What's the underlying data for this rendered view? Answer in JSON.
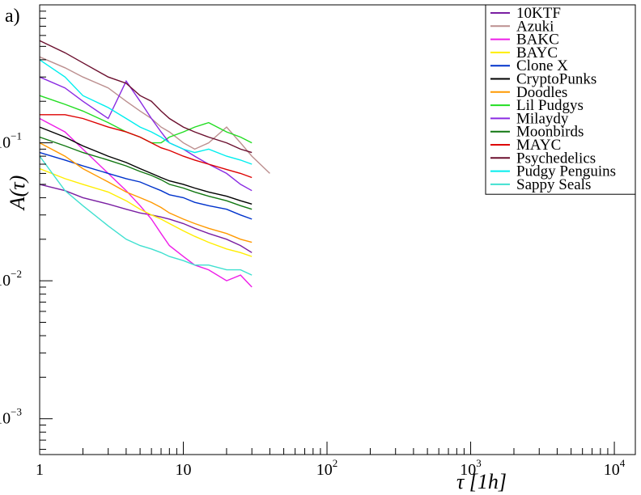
{
  "panel_label": "a)",
  "chart_data": {
    "type": "line",
    "xlabel": "τ [1h]",
    "ylabel": "A(τ)",
    "xscale": "log",
    "yscale": "log",
    "xlim": [
      1,
      14000
    ],
    "ylim": [
      0.00055,
      1
    ],
    "x_ticks": [
      {
        "value": 1,
        "base": "1",
        "exp": ""
      },
      {
        "value": 10,
        "base": "10",
        "exp": ""
      },
      {
        "value": 100,
        "base": "10",
        "exp": "2"
      },
      {
        "value": 1000,
        "base": "10",
        "exp": "3"
      },
      {
        "value": 10000,
        "base": "10",
        "exp": "4"
      }
    ],
    "y_ticks": [
      {
        "value": 0.1,
        "base": "10",
        "exp": "−1"
      },
      {
        "value": 0.01,
        "base": "10",
        "exp": "−2"
      },
      {
        "value": 0.001,
        "base": "10",
        "exp": "−3"
      }
    ],
    "legend_position": "top-right",
    "grid": false,
    "series": [
      {
        "name": "10KTF",
        "color": "#7a1fa2",
        "x": [
          1,
          1.5,
          2,
          3,
          4,
          5,
          6,
          7,
          8,
          10,
          12,
          15,
          20,
          25,
          30
        ],
        "y": [
          0.05,
          0.045,
          0.04,
          0.036,
          0.033,
          0.031,
          0.03,
          0.029,
          0.028,
          0.026,
          0.024,
          0.022,
          0.02,
          0.018,
          0.016
        ]
      },
      {
        "name": "Azuki",
        "color": "#bc8f8f",
        "x": [
          1,
          1.5,
          2,
          3,
          4,
          5,
          6,
          7,
          8,
          10,
          12,
          15,
          20,
          25,
          30,
          40
        ],
        "y": [
          0.42,
          0.35,
          0.3,
          0.25,
          0.2,
          0.17,
          0.15,
          0.13,
          0.12,
          0.1,
          0.09,
          0.1,
          0.13,
          0.1,
          0.08,
          0.06
        ]
      },
      {
        "name": "BAKC",
        "color": "#ee1ee8",
        "x": [
          1,
          1.5,
          2,
          3,
          4,
          5,
          6,
          7,
          8,
          10,
          12,
          15,
          20,
          25,
          30
        ],
        "y": [
          0.15,
          0.12,
          0.09,
          0.06,
          0.045,
          0.035,
          0.028,
          0.022,
          0.018,
          0.015,
          0.013,
          0.012,
          0.01,
          0.011,
          0.009
        ]
      },
      {
        "name": "BAYC",
        "color": "#ffee00",
        "x": [
          1,
          1.5,
          2,
          3,
          4,
          5,
          6,
          7,
          8,
          10,
          12,
          15,
          20,
          25,
          30
        ],
        "y": [
          0.065,
          0.055,
          0.05,
          0.044,
          0.038,
          0.033,
          0.03,
          0.028,
          0.026,
          0.023,
          0.021,
          0.019,
          0.017,
          0.016,
          0.015
        ]
      },
      {
        "name": "Clone X",
        "color": "#0033cc",
        "x": [
          1,
          1.5,
          2,
          3,
          4,
          5,
          6,
          7,
          8,
          10,
          12,
          15,
          20,
          25,
          30
        ],
        "y": [
          0.085,
          0.075,
          0.068,
          0.06,
          0.055,
          0.052,
          0.048,
          0.045,
          0.042,
          0.04,
          0.037,
          0.035,
          0.033,
          0.03,
          0.028
        ]
      },
      {
        "name": "CryptoPunks",
        "color": "#000000",
        "x": [
          1,
          1.5,
          2,
          3,
          4,
          5,
          6,
          7,
          8,
          10,
          12,
          15,
          20,
          25,
          30
        ],
        "y": [
          0.13,
          0.11,
          0.095,
          0.08,
          0.072,
          0.065,
          0.06,
          0.056,
          0.053,
          0.05,
          0.047,
          0.044,
          0.041,
          0.038,
          0.036
        ]
      },
      {
        "name": "Doodles",
        "color": "#ff9900",
        "x": [
          1,
          1.5,
          2,
          3,
          4,
          5,
          6,
          7,
          8,
          10,
          12,
          15,
          20,
          25,
          30
        ],
        "y": [
          0.1,
          0.08,
          0.065,
          0.052,
          0.044,
          0.04,
          0.037,
          0.034,
          0.031,
          0.028,
          0.026,
          0.024,
          0.022,
          0.02,
          0.019
        ]
      },
      {
        "name": "Lil Pudgys",
        "color": "#22dd22",
        "x": [
          1,
          1.5,
          2,
          3,
          4,
          5,
          6,
          7,
          8,
          10,
          12,
          15,
          20,
          25,
          30
        ],
        "y": [
          0.22,
          0.19,
          0.17,
          0.14,
          0.12,
          0.11,
          0.1,
          0.1,
          0.11,
          0.12,
          0.13,
          0.14,
          0.12,
          0.11,
          0.1
        ]
      },
      {
        "name": "Milaydy",
        "color": "#8a2be2",
        "x": [
          1,
          1.5,
          2,
          3,
          4,
          5,
          6,
          7,
          8,
          10,
          12,
          15,
          20,
          25,
          30
        ],
        "y": [
          0.3,
          0.25,
          0.2,
          0.15,
          0.28,
          0.2,
          0.15,
          0.12,
          0.1,
          0.09,
          0.08,
          0.07,
          0.06,
          0.05,
          0.045
        ]
      },
      {
        "name": "Moonbirds",
        "color": "#117711",
        "x": [
          1,
          1.5,
          2,
          3,
          4,
          5,
          6,
          7,
          8,
          10,
          12,
          15,
          20,
          25,
          30
        ],
        "y": [
          0.11,
          0.095,
          0.085,
          0.075,
          0.068,
          0.062,
          0.058,
          0.054,
          0.05,
          0.047,
          0.044,
          0.041,
          0.038,
          0.035,
          0.033
        ]
      },
      {
        "name": "MAYC",
        "color": "#dd0000",
        "x": [
          1,
          1.5,
          2,
          3,
          4,
          5,
          6,
          7,
          8,
          10,
          12,
          15,
          20,
          25,
          30
        ],
        "y": [
          0.16,
          0.16,
          0.15,
          0.13,
          0.12,
          0.11,
          0.1,
          0.092,
          0.088,
          0.08,
          0.075,
          0.07,
          0.064,
          0.06,
          0.056
        ]
      },
      {
        "name": "Psychedelics",
        "color": "#6b0f2e",
        "x": [
          1,
          1.5,
          2,
          3,
          4,
          5,
          6,
          7,
          8,
          10,
          12,
          15,
          20,
          25,
          30
        ],
        "y": [
          0.55,
          0.45,
          0.38,
          0.3,
          0.27,
          0.22,
          0.2,
          0.17,
          0.15,
          0.13,
          0.12,
          0.11,
          0.1,
          0.09,
          0.085
        ]
      },
      {
        "name": "Pudgy Penguins",
        "color": "#00eeee",
        "x": [
          1,
          1.5,
          2,
          3,
          4,
          5,
          6,
          7,
          8,
          10,
          12,
          15,
          20,
          25,
          30
        ],
        "y": [
          0.4,
          0.3,
          0.22,
          0.18,
          0.15,
          0.13,
          0.12,
          0.11,
          0.1,
          0.09,
          0.085,
          0.09,
          0.08,
          0.075,
          0.07
        ]
      },
      {
        "name": "Sappy Seals",
        "color": "#40e0d0",
        "x": [
          1,
          1.5,
          2,
          3,
          4,
          5,
          6,
          7,
          8,
          10,
          12,
          15,
          20,
          25,
          30
        ],
        "y": [
          0.08,
          0.045,
          0.035,
          0.025,
          0.02,
          0.018,
          0.017,
          0.016,
          0.015,
          0.014,
          0.013,
          0.013,
          0.012,
          0.012,
          0.011
        ]
      }
    ]
  }
}
